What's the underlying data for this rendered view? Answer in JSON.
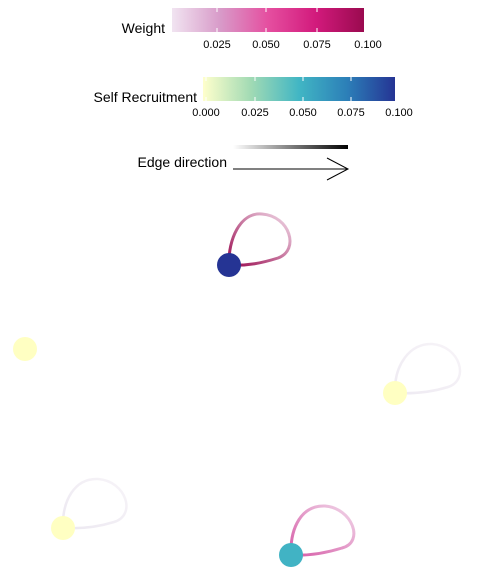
{
  "legend": {
    "weight": {
      "title": "Weight",
      "ticks": [
        "0.025",
        "0.050",
        "0.075",
        "0.100"
      ],
      "colors": [
        "#f1e4f1",
        "#d89bc9",
        "#e54fa0",
        "#d21a7c",
        "#9a0a4f"
      ]
    },
    "self_recruitment": {
      "title": "Self Recruitment",
      "ticks": [
        "0.000",
        "0.025",
        "0.050",
        "0.075",
        "0.100"
      ],
      "colors": [
        "#ffffcc",
        "#a1dab4",
        "#41b6c4",
        "#2c7fb8",
        "#253494"
      ]
    },
    "edge_direction": {
      "title": "Edge direction"
    }
  },
  "network": {
    "nodes": [
      {
        "id": "n1",
        "self_recruitment": 0.1,
        "color": "#253494"
      },
      {
        "id": "n2",
        "self_recruitment": 0.0,
        "color": "#ffffc2"
      },
      {
        "id": "n3",
        "self_recruitment": 0.0,
        "color": "#ffffc2"
      },
      {
        "id": "n4",
        "self_recruitment": 0.0,
        "color": "#ffffc2"
      },
      {
        "id": "n5",
        "self_recruitment": 0.06,
        "color": "#41b3c4"
      }
    ],
    "self_loops": [
      {
        "node": "n1",
        "weight_color_start": "#9a0a4f",
        "weight_color_end": "#f2dcea"
      },
      {
        "node": "n3",
        "weight_color_start": "#eeeaf2",
        "weight_color_end": "#f7f4f8"
      },
      {
        "node": "n4",
        "weight_color_start": "#ece8f1",
        "weight_color_end": "#f7f4f8"
      },
      {
        "node": "n5",
        "weight_color_start": "#d65aa6",
        "weight_color_end": "#f1d8ea"
      }
    ]
  }
}
